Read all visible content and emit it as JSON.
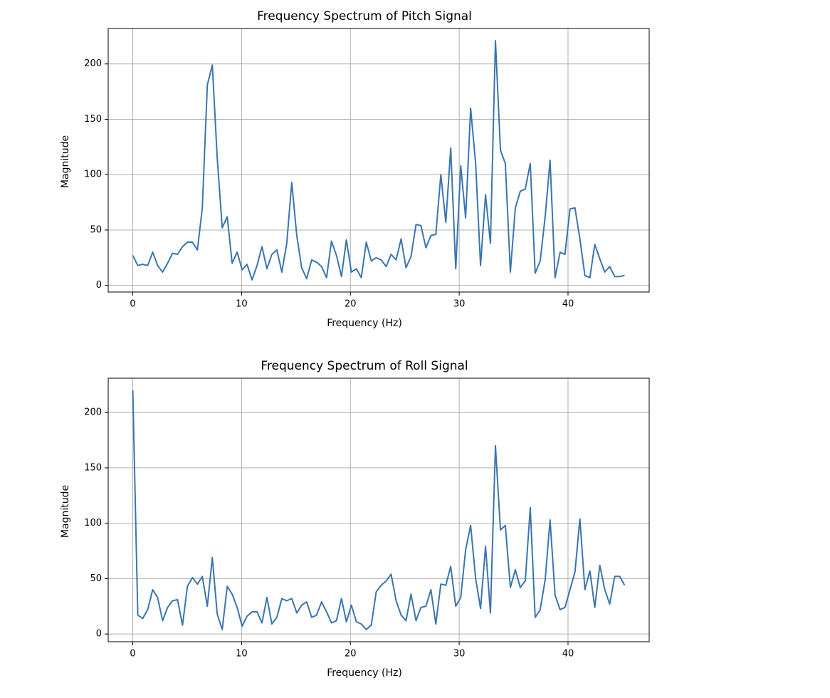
{
  "chart_data": [
    {
      "type": "line",
      "title": "Frequency Spectrum of Pitch Signal",
      "x_label": "Frequency (Hz)",
      "y_label": "Magnitude",
      "x": [
        0,
        0.46,
        0.91,
        1.37,
        1.83,
        2.28,
        2.74,
        3.2,
        3.65,
        4.11,
        4.57,
        5.02,
        5.48,
        5.94,
        6.39,
        6.85,
        7.31,
        7.76,
        8.22,
        8.68,
        9.13,
        9.59,
        10.05,
        10.5,
        10.96,
        11.42,
        11.87,
        12.33,
        12.78,
        13.24,
        13.7,
        14.15,
        14.61,
        15.07,
        15.52,
        15.98,
        16.44,
        16.89,
        17.35,
        17.81,
        18.26,
        18.72,
        19.18,
        19.63,
        20.09,
        20.55,
        21,
        21.46,
        21.92,
        22.37,
        22.83,
        23.29,
        23.74,
        24.2,
        24.66,
        25.11,
        25.57,
        26.03,
        26.48,
        26.94,
        27.4,
        27.85,
        28.31,
        28.77,
        29.22,
        29.68,
        30.14,
        30.59,
        31.05,
        31.51,
        31.96,
        32.42,
        32.87,
        33.33,
        33.79,
        34.24,
        34.7,
        35.16,
        35.61,
        36.07,
        36.53,
        36.98,
        37.44,
        37.9,
        38.35,
        38.81,
        39.27,
        39.72,
        40.18,
        40.64,
        41.09,
        41.55,
        42.01,
        42.46,
        42.92,
        43.38,
        43.83,
        44.29,
        44.75,
        45.2
      ],
      "series": [
        {
          "color": "#3b75af",
          "values": [
            27,
            18,
            19,
            18,
            30,
            18,
            12,
            20,
            29,
            28,
            35,
            39,
            39,
            32,
            70,
            181,
            199,
            115,
            52,
            62,
            20,
            30,
            14,
            19,
            5,
            18,
            35,
            15,
            28,
            32,
            12,
            38,
            93,
            45,
            16,
            6,
            23,
            21,
            17,
            7,
            40,
            27,
            8,
            41,
            12,
            15,
            7,
            39,
            22,
            25,
            23,
            17,
            28,
            23,
            42,
            16,
            26,
            55,
            54,
            34,
            45,
            46,
            100,
            57,
            124,
            15,
            108,
            61,
            160,
            110,
            18,
            82,
            38,
            221,
            122,
            110,
            12,
            70,
            85,
            87,
            110,
            11,
            22,
            62,
            113,
            7,
            30,
            28,
            69,
            70,
            42,
            9,
            7,
            37,
            24,
            12,
            17,
            8,
            8,
            9
          ]
        }
      ],
      "xlim": [
        -2.26,
        47.46
      ],
      "xticks": [
        0,
        10,
        20,
        30,
        40
      ],
      "ylim": [
        -6,
        232
      ],
      "yticks": [
        0,
        50,
        100,
        150,
        200
      ],
      "grid": true
    },
    {
      "type": "line",
      "title": "Frequency Spectrum of Roll Signal",
      "x_label": "Frequency (Hz)",
      "y_label": "Magnitude",
      "x": [
        0,
        0.46,
        0.91,
        1.37,
        1.83,
        2.28,
        2.74,
        3.2,
        3.65,
        4.11,
        4.57,
        5.02,
        5.48,
        5.94,
        6.39,
        6.85,
        7.31,
        7.76,
        8.22,
        8.68,
        9.13,
        9.59,
        10.05,
        10.5,
        10.96,
        11.42,
        11.87,
        12.33,
        12.78,
        13.24,
        13.7,
        14.15,
        14.61,
        15.07,
        15.52,
        15.98,
        16.44,
        16.89,
        17.35,
        17.81,
        18.26,
        18.72,
        19.18,
        19.63,
        20.09,
        20.55,
        21,
        21.46,
        21.92,
        22.37,
        22.83,
        23.29,
        23.74,
        24.2,
        24.66,
        25.11,
        25.57,
        26.03,
        26.48,
        26.94,
        27.4,
        27.85,
        28.31,
        28.77,
        29.22,
        29.68,
        30.14,
        30.59,
        31.05,
        31.51,
        31.96,
        32.42,
        32.87,
        33.33,
        33.79,
        34.24,
        34.7,
        35.16,
        35.61,
        36.07,
        36.53,
        36.98,
        37.44,
        37.9,
        38.35,
        38.81,
        39.27,
        39.72,
        40.18,
        40.64,
        41.09,
        41.55,
        42.01,
        42.46,
        42.92,
        43.38,
        43.83,
        44.29,
        44.75,
        45.2
      ],
      "series": [
        {
          "color": "#3b75af",
          "values": [
            220,
            17,
            14,
            22,
            40,
            33,
            12,
            24,
            30,
            31,
            8,
            43,
            51,
            45,
            52,
            25,
            69,
            18,
            4,
            43,
            36,
            24,
            7,
            16,
            20,
            20,
            10,
            33,
            9,
            15,
            32,
            30,
            32,
            19,
            26,
            29,
            15,
            17,
            29,
            20,
            10,
            12,
            32,
            11,
            26,
            11,
            9,
            4,
            8,
            38,
            44,
            48,
            54,
            30,
            17,
            12,
            36,
            12,
            24,
            25,
            40,
            9,
            45,
            44,
            61,
            25,
            33,
            76,
            98,
            50,
            23,
            79,
            19,
            170,
            94,
            98,
            42,
            58,
            42,
            48,
            114,
            15,
            22,
            49,
            103,
            35,
            22,
            24,
            40,
            56,
            104,
            40,
            57,
            24,
            62,
            40,
            27,
            52,
            52,
            44
          ]
        }
      ],
      "xlim": [
        -2.26,
        47.46
      ],
      "xticks": [
        0,
        10,
        20,
        30,
        40
      ],
      "ylim": [
        -7,
        231
      ],
      "yticks": [
        0,
        50,
        100,
        150,
        200
      ],
      "grid": true
    }
  ]
}
